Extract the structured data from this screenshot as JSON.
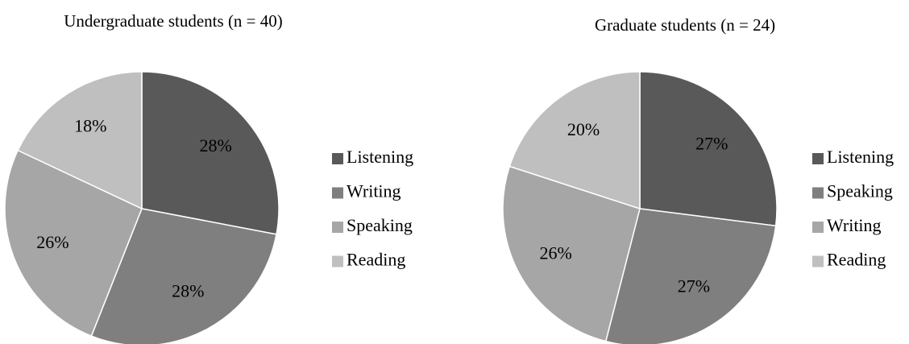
{
  "chart_data": [
    {
      "type": "pie",
      "title": "Undergraduate students (n = 40)",
      "categories": [
        "Listening",
        "Writing",
        "Speaking",
        "Reading"
      ],
      "values": [
        28,
        28,
        26,
        18
      ],
      "value_labels": [
        "28%",
        "28%",
        "26%",
        "18%"
      ],
      "colors": [
        "#595959",
        "#7f7f7f",
        "#a6a6a6",
        "#bfbfbf"
      ],
      "legend": "right"
    },
    {
      "type": "pie",
      "title": "Graduate students (n = 24)",
      "categories": [
        "Listening",
        "Speaking",
        "Writing",
        "Reading"
      ],
      "values": [
        27,
        27,
        26,
        20
      ],
      "value_labels": [
        "27%",
        "27%",
        "26%",
        "20%"
      ],
      "colors": [
        "#595959",
        "#7f7f7f",
        "#a6a6a6",
        "#bfbfbf"
      ],
      "legend": "right"
    }
  ]
}
